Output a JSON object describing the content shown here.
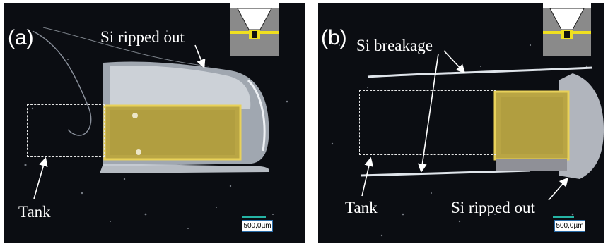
{
  "panels": [
    {
      "id": "a",
      "letter": "(a)",
      "annotations": {
        "top": "Si ripped out",
        "bottom": "Tank"
      },
      "scalebar": "500,0µm"
    },
    {
      "id": "b",
      "letter": "(b)",
      "annotations": {
        "top": "Si breakage",
        "tank": "Tank",
        "ripped": "Si ripped out"
      },
      "scalebar": "500,0µm"
    }
  ],
  "colors": {
    "background": "#0b0d12",
    "chip_gold": "#b9a544",
    "chip_edge": "#e8d15a",
    "silicon": "#c8ccd4",
    "inset_gray": "#8a8a8a",
    "inset_yellow": "#f0e020"
  }
}
